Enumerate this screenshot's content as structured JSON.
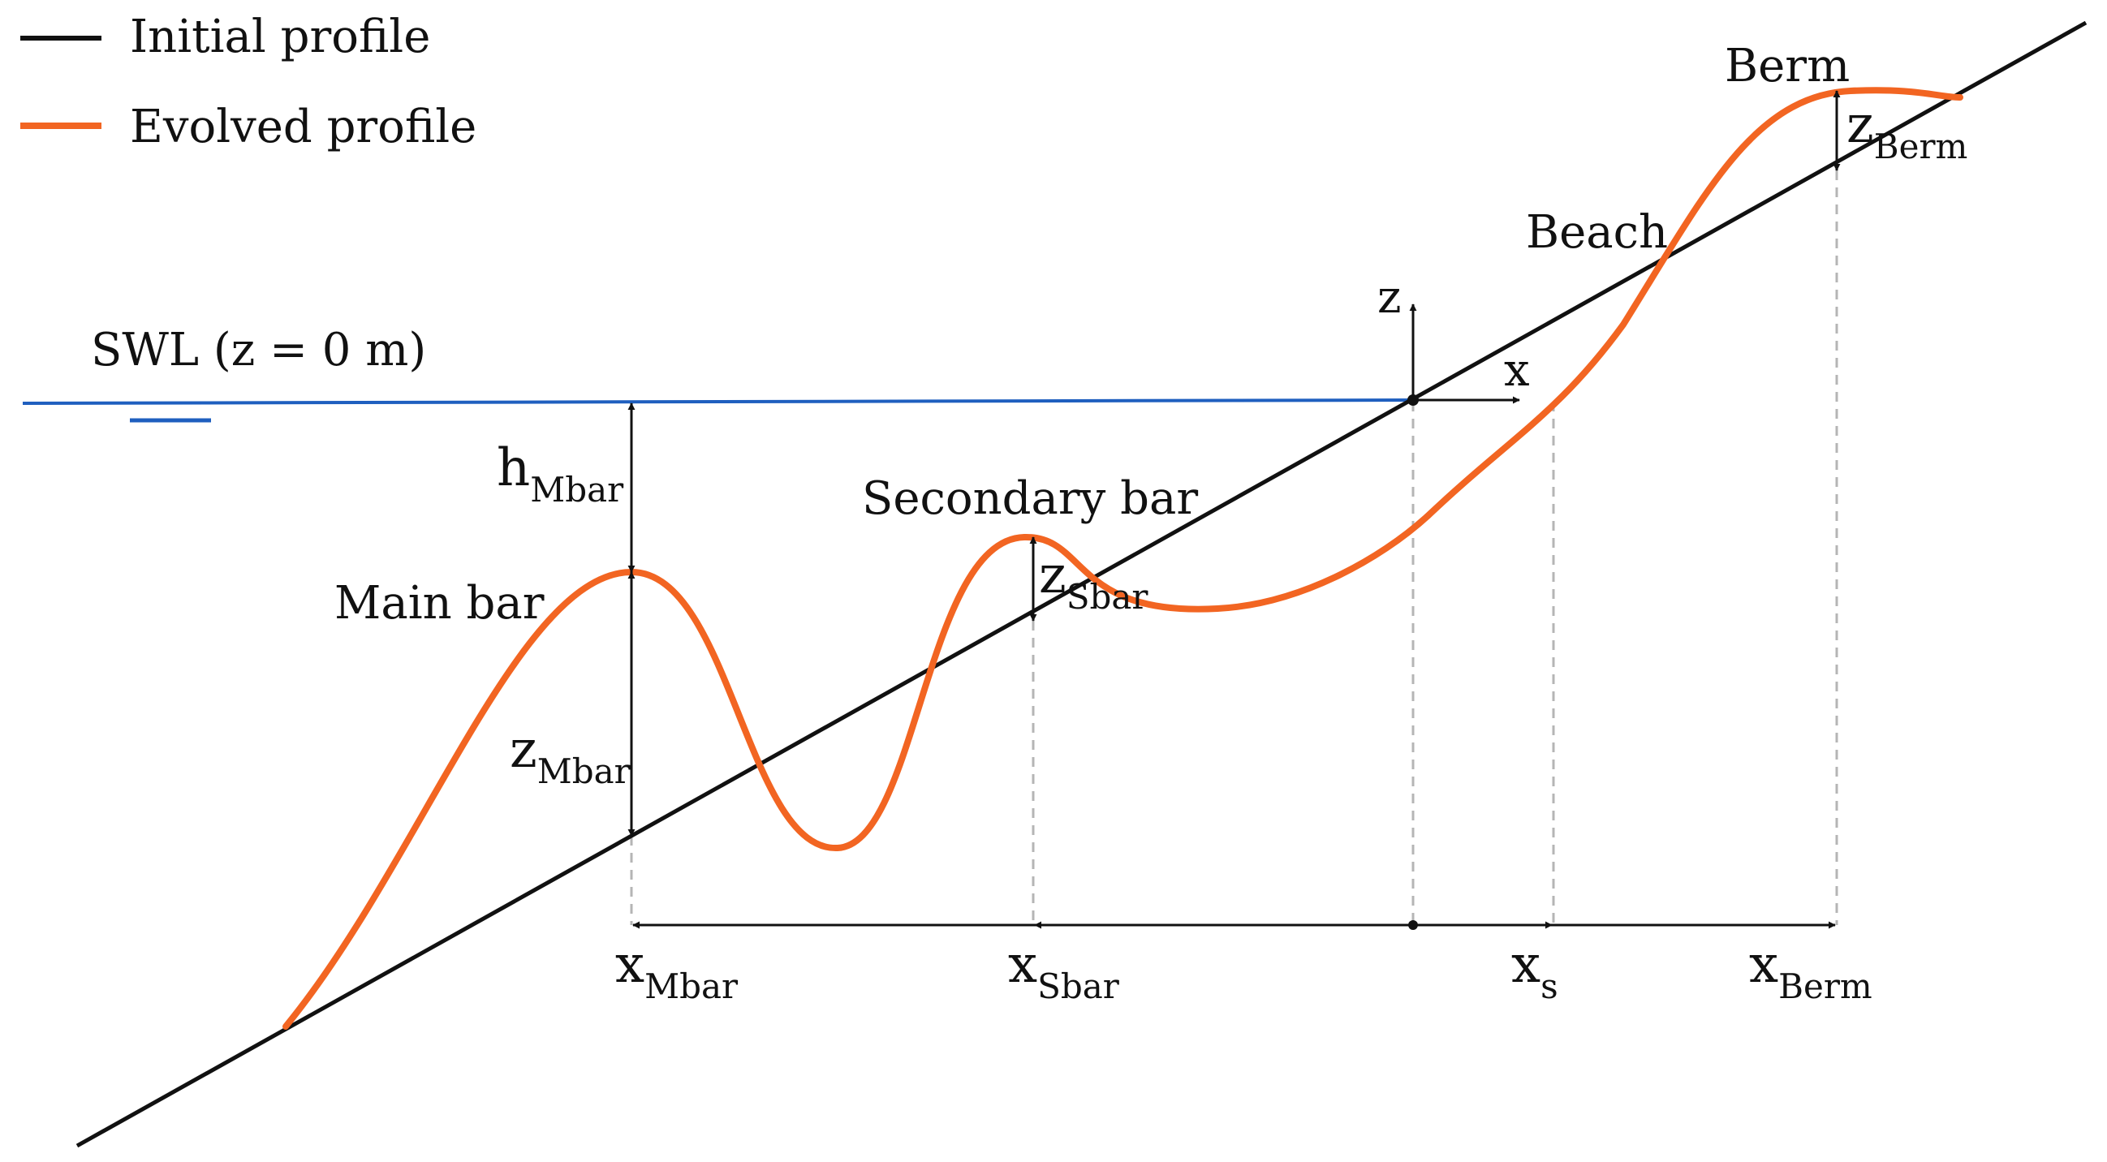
{
  "legend": {
    "initial": "Initial profile",
    "evolved": "Evolved profile"
  },
  "labels": {
    "swl": "SWL (z = 0 m)",
    "berm": "Berm",
    "beach": "Beach",
    "secondary_bar": "Secondary bar",
    "main_bar": "Main bar",
    "z_axis": "z",
    "x_axis": "x"
  },
  "variables": {
    "h_mbar": {
      "main": "h",
      "sub": "Mbar"
    },
    "z_mbar": {
      "main": "z",
      "sub": "Mbar"
    },
    "z_sbar": {
      "main": "z",
      "sub": "Sbar"
    },
    "z_berm": {
      "main": "z",
      "sub": "Berm"
    },
    "x_mbar": {
      "main": "x",
      "sub": "Mbar"
    },
    "x_sbar": {
      "main": "x",
      "sub": "Sbar"
    },
    "x_s": {
      "main": "x",
      "sub": "s"
    },
    "x_berm": {
      "main": "x",
      "sub": "Berm"
    }
  },
  "colors": {
    "initial_profile": "#111111",
    "evolved_profile": "#f26522",
    "swl": "#1f5fbf",
    "guide": "#b5b5b5"
  }
}
